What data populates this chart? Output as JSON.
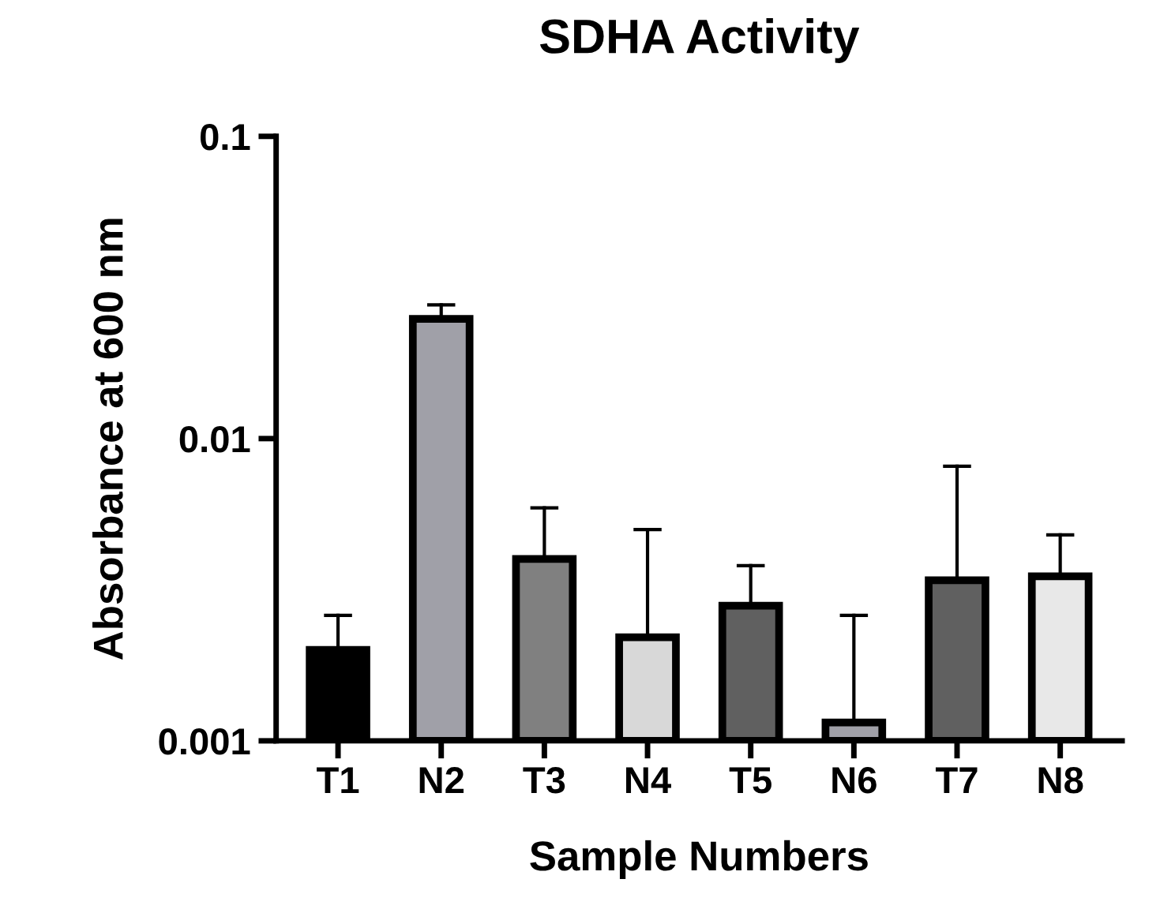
{
  "chart_data": {
    "type": "bar",
    "title": "SDHA Activity",
    "xlabel": "Sample Numbers",
    "ylabel": "Absorbance at 600 nm",
    "categories": [
      "T1",
      "N2",
      "T3",
      "N4",
      "T5",
      "N6",
      "T7",
      "N8"
    ],
    "values": [
      0.002,
      0.0249,
      0.004,
      0.0022,
      0.0028,
      0.00115,
      0.0034,
      0.0035
    ],
    "colors": [
      "#000000",
      "#a0a0a8",
      "#808080",
      "#d8d8d8",
      "#606060",
      "#a0a0a8",
      "#606060",
      "#e8e8e8"
    ],
    "errors": [
      [
        0.002,
        0.0026
      ],
      [
        0.0249,
        0.0277
      ],
      [
        0.004,
        0.0059
      ],
      [
        0.0022,
        0.005
      ],
      [
        0.0028,
        0.0038
      ],
      [
        0.00115,
        0.0026
      ],
      [
        0.0034,
        0.0081
      ],
      [
        0.0035,
        0.0048
      ]
    ],
    "log": true,
    "ylim": [
      0.001,
      0.1
    ],
    "yticks": [
      0.001,
      0.01,
      0.1
    ],
    "grid": false,
    "legend": false
  }
}
